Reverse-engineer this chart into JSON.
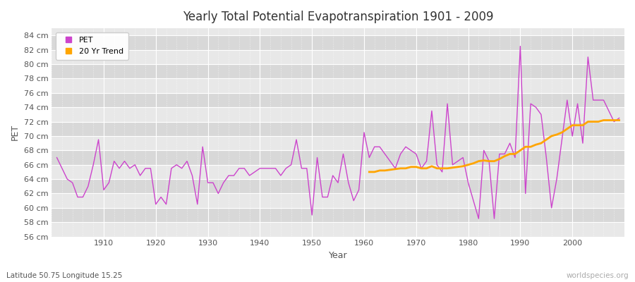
{
  "title": "Yearly Total Potential Evapotranspiration 1901 - 2009",
  "xlabel": "Year",
  "ylabel": "PET",
  "subtitle": "Latitude 50.75 Longitude 15.25",
  "watermark": "worldspecies.org",
  "background_color": "#ffffff",
  "plot_bg_color": "#e8e8e8",
  "band_color_light": "#ebebeb",
  "band_color_dark": "#e0e0e0",
  "pet_color": "#cc44cc",
  "trend_color": "#ffa500",
  "ylim": [
    56,
    85
  ],
  "yticks": [
    56,
    58,
    60,
    62,
    64,
    66,
    68,
    70,
    72,
    74,
    76,
    78,
    80,
    82,
    84
  ],
  "years": [
    1901,
    1902,
    1903,
    1904,
    1905,
    1906,
    1907,
    1908,
    1909,
    1910,
    1911,
    1912,
    1913,
    1914,
    1915,
    1916,
    1917,
    1918,
    1919,
    1920,
    1921,
    1922,
    1923,
    1924,
    1925,
    1926,
    1927,
    1928,
    1929,
    1930,
    1931,
    1932,
    1933,
    1934,
    1935,
    1936,
    1937,
    1938,
    1939,
    1940,
    1941,
    1942,
    1943,
    1944,
    1945,
    1946,
    1947,
    1948,
    1949,
    1950,
    1951,
    1952,
    1953,
    1954,
    1955,
    1956,
    1957,
    1958,
    1959,
    1960,
    1961,
    1962,
    1963,
    1964,
    1965,
    1966,
    1967,
    1968,
    1969,
    1970,
    1971,
    1972,
    1973,
    1974,
    1975,
    1976,
    1977,
    1978,
    1979,
    1980,
    1981,
    1982,
    1983,
    1984,
    1985,
    1986,
    1987,
    1988,
    1989,
    1990,
    1991,
    1992,
    1993,
    1994,
    1995,
    1996,
    1997,
    1998,
    1999,
    2000,
    2001,
    2002,
    2003,
    2004,
    2005,
    2006,
    2007,
    2008,
    2009
  ],
  "pet_values": [
    67.0,
    65.5,
    64.0,
    63.5,
    61.5,
    61.5,
    63.0,
    66.0,
    69.5,
    62.5,
    63.5,
    66.5,
    65.5,
    66.5,
    65.5,
    66.0,
    64.5,
    65.5,
    65.5,
    60.5,
    61.5,
    60.5,
    65.5,
    66.0,
    65.5,
    66.5,
    64.5,
    60.5,
    68.5,
    63.5,
    63.5,
    62.0,
    63.5,
    64.5,
    64.5,
    65.5,
    65.5,
    64.5,
    65.0,
    65.5,
    65.5,
    65.5,
    65.5,
    64.5,
    65.5,
    66.0,
    69.5,
    65.5,
    65.5,
    59.0,
    67.0,
    61.5,
    61.5,
    64.5,
    63.5,
    67.5,
    63.5,
    61.0,
    62.5,
    70.5,
    67.0,
    68.5,
    68.5,
    67.5,
    66.5,
    65.5,
    67.5,
    68.5,
    68.0,
    67.5,
    65.5,
    66.5,
    73.5,
    66.0,
    65.0,
    74.5,
    66.0,
    66.5,
    67.0,
    63.5,
    61.0,
    58.5,
    68.0,
    66.5,
    58.5,
    67.5,
    67.5,
    69.0,
    67.0,
    82.5,
    62.0,
    74.5,
    74.0,
    73.0,
    67.0,
    60.0,
    64.0,
    69.5,
    75.0,
    70.0,
    74.5,
    69.0,
    81.0,
    75.0,
    75.0,
    75.0,
    73.5,
    72.0,
    72.5
  ],
  "trend_years": [
    1961,
    1962,
    1963,
    1964,
    1965,
    1966,
    1967,
    1968,
    1969,
    1970,
    1971,
    1972,
    1973,
    1974,
    1975,
    1976,
    1977,
    1978,
    1979,
    1980,
    1981,
    1982,
    1983,
    1984,
    1985,
    1986,
    1987,
    1988,
    1989,
    1990,
    1991,
    1992,
    1993,
    1994,
    1995,
    1996,
    1997,
    1998,
    1999,
    2000,
    2001,
    2002,
    2003,
    2004,
    2005,
    2006,
    2007,
    2008,
    2009
  ],
  "trend_values": [
    65.0,
    65.0,
    65.2,
    65.2,
    65.3,
    65.4,
    65.5,
    65.5,
    65.7,
    65.7,
    65.5,
    65.5,
    65.8,
    65.5,
    65.5,
    65.5,
    65.6,
    65.7,
    65.8,
    66.0,
    66.2,
    66.5,
    66.6,
    66.5,
    66.5,
    66.8,
    67.2,
    67.5,
    67.5,
    68.0,
    68.5,
    68.5,
    68.8,
    69.0,
    69.5,
    70.0,
    70.2,
    70.5,
    71.0,
    71.5,
    71.5,
    71.5,
    72.0,
    72.0,
    72.0,
    72.2,
    72.2,
    72.2,
    72.2
  ]
}
